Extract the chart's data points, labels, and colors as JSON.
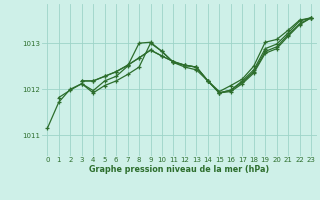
{
  "xlabel": "Graphe pression niveau de la mer (hPa)",
  "bg_color": "#cef0e8",
  "grid_color": "#9dd4c8",
  "line_color": "#2d6e2d",
  "ylim": [
    1010.55,
    1013.85
  ],
  "xlim": [
    -0.5,
    23.5
  ],
  "yticks": [
    1011,
    1012,
    1013
  ],
  "xticks": [
    0,
    1,
    2,
    3,
    4,
    5,
    6,
    7,
    8,
    9,
    10,
    11,
    12,
    13,
    14,
    15,
    16,
    17,
    18,
    19,
    20,
    21,
    22,
    23
  ],
  "series": [
    {
      "x": [
        0,
        1,
        2,
        3,
        4,
        5,
        6,
        7,
        8,
        9,
        10,
        11,
        12,
        13,
        14,
        15,
        16,
        17,
        18,
        19,
        20,
        21,
        22,
        23
      ],
      "y": [
        1011.15,
        1011.72,
        1012.0,
        1012.12,
        1011.97,
        1012.18,
        1012.28,
        1012.5,
        1013.0,
        1013.02,
        1012.82,
        1012.58,
        1012.52,
        1012.48,
        1012.18,
        1011.95,
        1012.08,
        1012.22,
        1012.5,
        1013.02,
        1013.08,
        1013.28,
        1013.5,
        1013.55
      ]
    },
    {
      "x": [
        1,
        2,
        3,
        4,
        5,
        6,
        7,
        8,
        9,
        10,
        11,
        12,
        13,
        14,
        15,
        16,
        17,
        18,
        19,
        20,
        21,
        22,
        23
      ],
      "y": [
        1011.82,
        1011.98,
        1012.12,
        1011.92,
        1012.08,
        1012.18,
        1012.32,
        1012.48,
        1013.0,
        1012.82,
        1012.58,
        1012.48,
        1012.42,
        1012.18,
        1011.92,
        1011.98,
        1012.18,
        1012.42,
        1012.88,
        1012.98,
        1013.22,
        1013.48,
        1013.55
      ]
    },
    {
      "x": [
        3,
        4,
        5,
        6,
        7,
        8,
        9,
        10,
        11,
        12,
        13,
        14,
        15,
        16,
        17,
        18,
        19,
        20,
        21,
        22,
        23
      ],
      "y": [
        1012.18,
        1012.18,
        1012.28,
        1012.38,
        1012.52,
        1012.68,
        1012.85,
        1012.72,
        1012.6,
        1012.52,
        1012.48,
        1012.18,
        1011.92,
        1011.98,
        1012.15,
        1012.38,
        1012.82,
        1012.92,
        1013.18,
        1013.42,
        1013.55
      ]
    },
    {
      "x": [
        3,
        4,
        5,
        6,
        7,
        8,
        9,
        10,
        11,
        12,
        13,
        14,
        15,
        16,
        17,
        18,
        19,
        20,
        21,
        22,
        23
      ],
      "y": [
        1012.18,
        1012.18,
        1012.28,
        1012.38,
        1012.52,
        1012.68,
        1012.85,
        1012.72,
        1012.6,
        1012.52,
        1012.48,
        1012.18,
        1011.92,
        1011.95,
        1012.12,
        1012.35,
        1012.78,
        1012.88,
        1013.15,
        1013.4,
        1013.55
      ]
    }
  ]
}
